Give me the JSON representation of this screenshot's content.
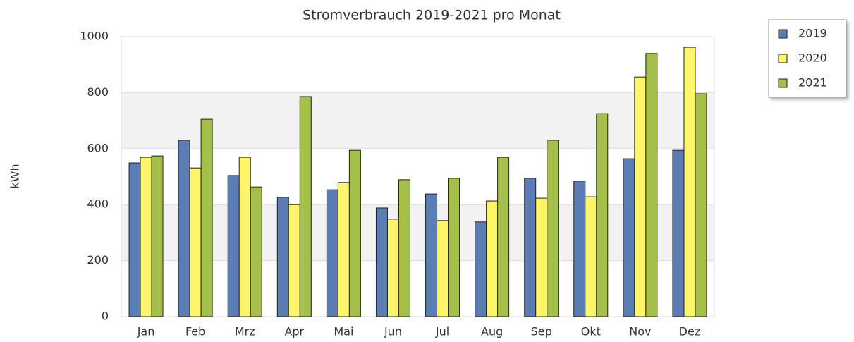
{
  "chart_data": {
    "type": "bar",
    "title": "Stromverbrauch 2019-2021 pro Monat",
    "y_label": "kWh",
    "categories": [
      "Jan",
      "Feb",
      "Mrz",
      "Apr",
      "Mai",
      "Jun",
      "Jul",
      "Aug",
      "Sep",
      "Okt",
      "Nov",
      "Dez"
    ],
    "series": [
      {
        "name": "2019",
        "color": "#5b7db3",
        "values": [
          549,
          630,
          504,
          426,
          453,
          388,
          438,
          338,
          494,
          484,
          564,
          594
        ]
      },
      {
        "name": "2020",
        "color": "#fff56a",
        "values": [
          569,
          531,
          569,
          400,
          479,
          348,
          343,
          413,
          423,
          428,
          856,
          962
        ]
      },
      {
        "name": "2021",
        "color": "#a5c04a",
        "values": [
          574,
          705,
          463,
          786,
          594,
          489,
          494,
          569,
          630,
          725,
          940,
          796
        ]
      }
    ],
    "ylim": [
      0,
      1000
    ],
    "yticks": [
      0,
      200,
      400,
      600,
      800,
      1000
    ],
    "grid": true,
    "legend": "right"
  }
}
